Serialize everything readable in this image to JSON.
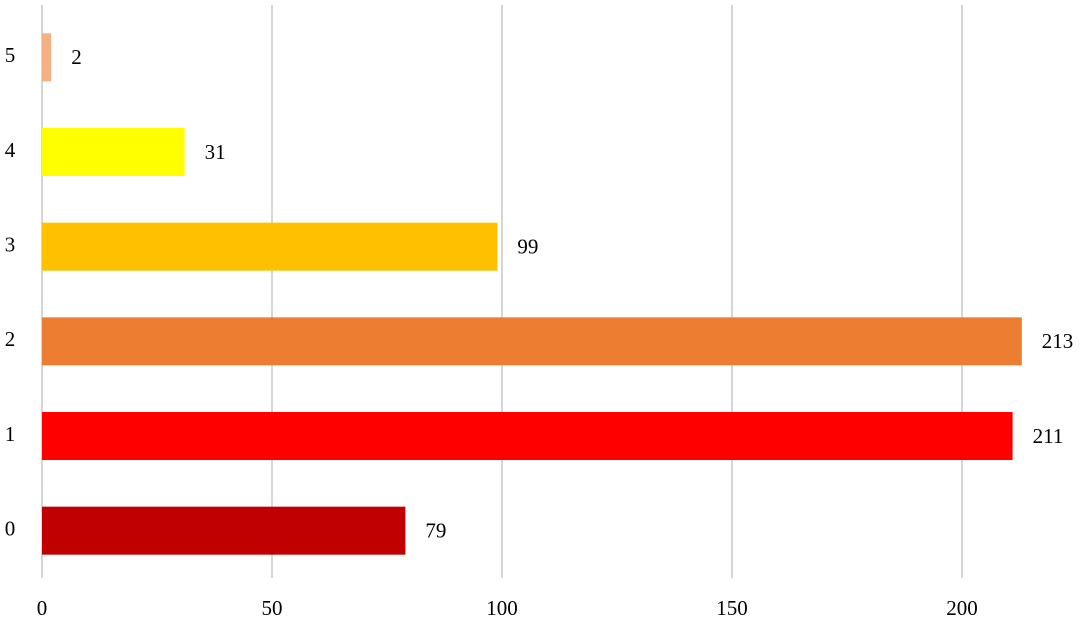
{
  "chart_data": {
    "type": "hbar",
    "categories": [
      "0",
      "1",
      "2",
      "3",
      "4",
      "5"
    ],
    "values": [
      79,
      211,
      213,
      99,
      31,
      2
    ],
    "colors": [
      "#c00000",
      "#ff0000",
      "#ed7d31",
      "#ffc000",
      "#ffff00",
      "#f4b183"
    ],
    "xlim": [
      0,
      225
    ],
    "xticks": [
      0,
      50,
      100,
      150,
      200
    ],
    "grid": true
  }
}
